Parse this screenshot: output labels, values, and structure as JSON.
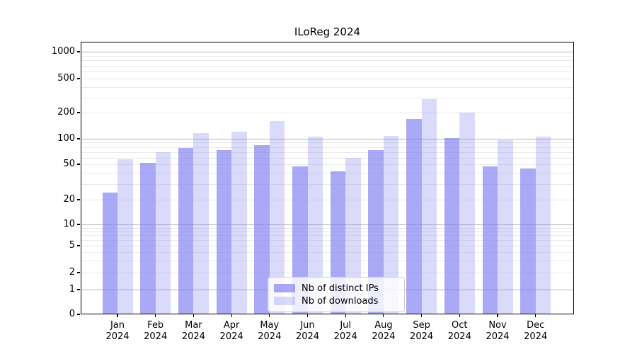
{
  "chart_data": {
    "type": "bar",
    "title": "ILoReg 2024",
    "categories": [
      "Jan 2024",
      "Feb 2024",
      "Mar 2024",
      "Apr 2024",
      "May 2024",
      "Jun 2024",
      "Jul 2024",
      "Aug 2024",
      "Sep 2024",
      "Oct 2024",
      "Nov 2024",
      "Dec 2024"
    ],
    "series": [
      {
        "name": "Nb of distinct IPs",
        "color": "#7b7bf0",
        "alpha": 0.65,
        "values": [
          24,
          52,
          78,
          73,
          84,
          47,
          42,
          74,
          170,
          101,
          47,
          45
        ]
      },
      {
        "name": "Nb of downloads",
        "color": "#7b7bf0",
        "alpha": 0.28,
        "values": [
          57,
          70,
          117,
          120,
          161,
          106,
          60,
          108,
          285,
          199,
          96,
          106
        ]
      }
    ],
    "xlabel": "",
    "ylabel": "",
    "yscale": "symlog",
    "y_ticks": [
      0,
      1,
      2,
      5,
      10,
      20,
      50,
      100,
      200,
      500,
      1000
    ],
    "ylim": [
      0,
      1200
    ],
    "grid": true,
    "legend_position": "lower center"
  },
  "colors": {
    "grid_major": "#b3b3b3",
    "grid_minor": "#e9e9e9",
    "spine": "#000000",
    "background": "#ffffff"
  }
}
